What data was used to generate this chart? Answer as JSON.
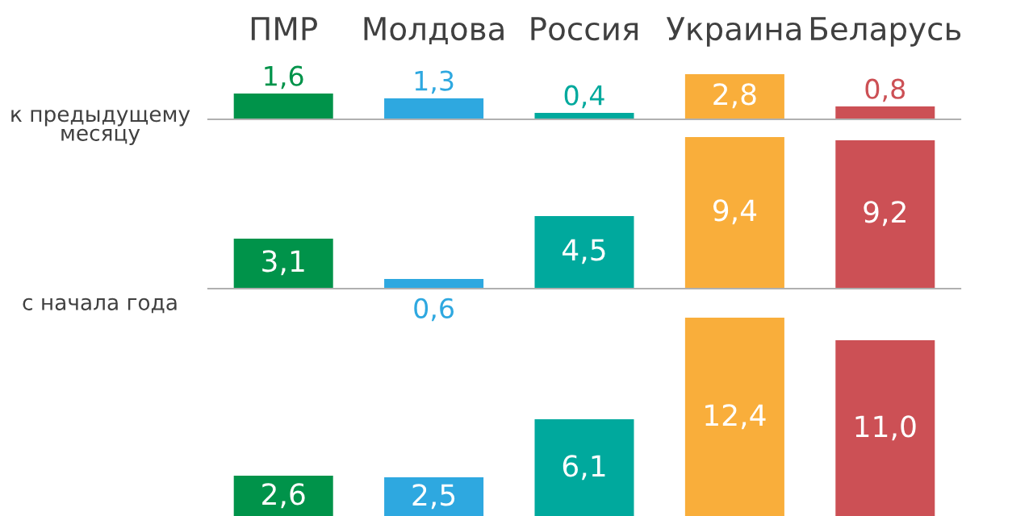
{
  "chart_data": [
    {
      "type": "bar",
      "ylabel": "к предыдущему\nмесяцу",
      "categories": [
        "ПМР",
        "Молдова",
        "Россия",
        "Украина",
        "Беларусь"
      ],
      "values": [
        1.6,
        1.3,
        0.4,
        2.8,
        0.8
      ],
      "value_labels": [
        "1,6",
        "1,3",
        "0,4",
        "2,8",
        "0,8"
      ],
      "colors": [
        "#00934a",
        "#2ea8e0",
        "#00a99d",
        "#f9ae3b",
        "#cc5055"
      ],
      "tick_labels": "x"
    },
    {
      "type": "bar",
      "ylabel": "с начала года",
      "categories": [
        null,
        null,
        null,
        null,
        null
      ],
      "values": [
        3.1,
        0.6,
        4.5,
        9.4,
        9.2
      ],
      "value_labels": [
        "3,1",
        "0,6",
        "4,5",
        "9,4",
        "9,2"
      ],
      "colors": [
        "#00934a",
        "#2ea8e0",
        "#00a99d",
        "#f9ae3b",
        "#cc5055"
      ],
      "tick_labels": false
    },
    {
      "type": "bar",
      "categories": [
        null,
        null,
        null,
        null,
        null
      ],
      "values": [
        2.6,
        2.5,
        6.1,
        12.4,
        11.0
      ],
      "value_labels": [
        "2,6",
        "2,5",
        "6,1",
        "12,4",
        "11,0"
      ],
      "colors": [
        "#00934a",
        "#2ea8e0",
        "#00a99d",
        "#f9ae3b",
        "#cc5055"
      ],
      "tick_labels": false
    }
  ]
}
